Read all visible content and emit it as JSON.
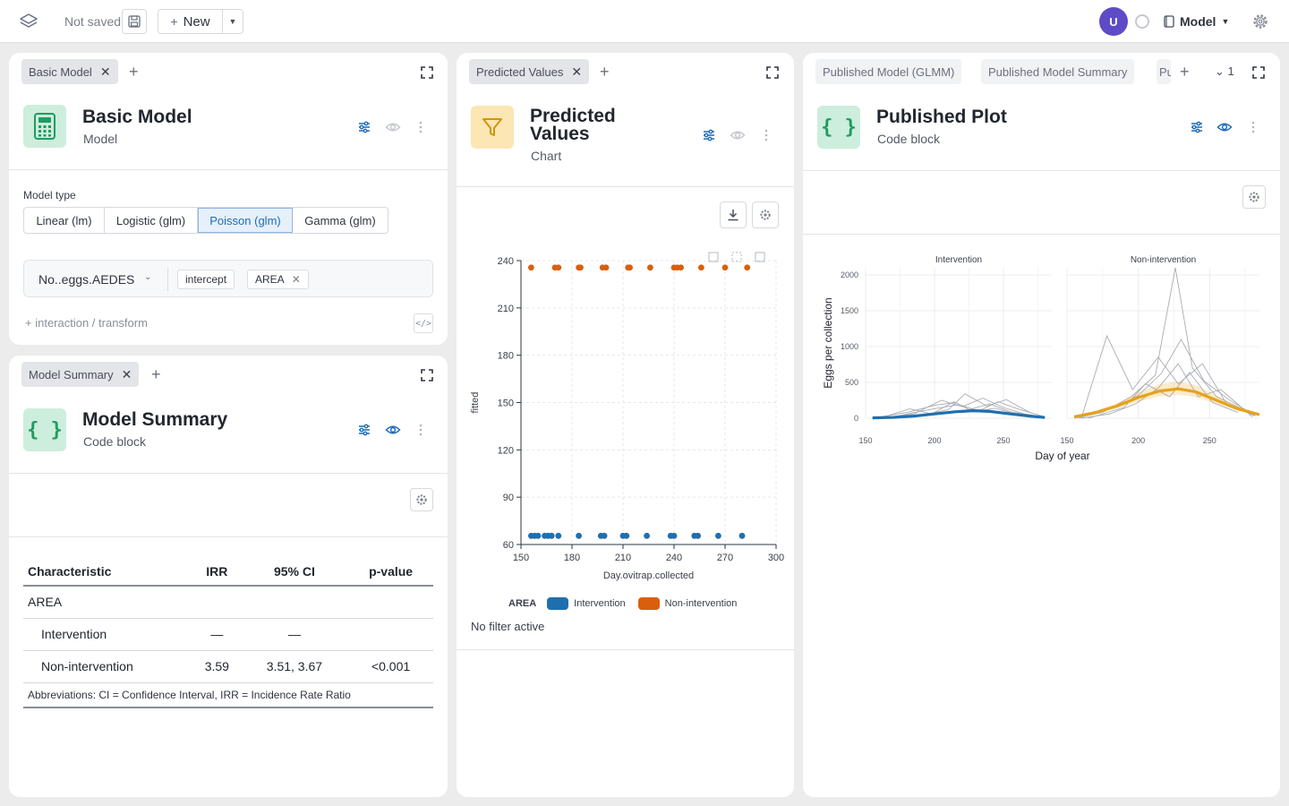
{
  "topbar": {
    "not_saved": "Not saved",
    "new_label": "New",
    "avatar_initial": "U",
    "model_label": "Model"
  },
  "panels": {
    "basic_model": {
      "tab_label": "Basic Model",
      "title": "Basic Model",
      "subtitle": "Model",
      "model_type_label": "Model type",
      "model_types": [
        "Linear (lm)",
        "Logistic (glm)",
        "Poisson (glm)",
        "Gamma (glm)"
      ],
      "selected_model_type": "Poisson (glm)",
      "response": "No..eggs.AEDES",
      "terms": [
        "intercept",
        "AREA"
      ],
      "interaction_label": "interaction / transform",
      "code_label": "</>"
    },
    "model_summary": {
      "tab_label": "Model Summary",
      "title": "Model Summary",
      "subtitle": "Code block",
      "table": {
        "headers": [
          "Characteristic",
          "IRR",
          "95% CI",
          "p-value"
        ],
        "rows": [
          [
            "AREA",
            "",
            "",
            ""
          ],
          [
            "Intervention",
            "—",
            "—",
            ""
          ],
          [
            "Non-intervention",
            "3.59",
            "3.51, 3.67",
            "<0.001"
          ]
        ],
        "footnote": "Abbreviations: CI = Confidence Interval, IRR = Incidence Rate Ratio"
      }
    },
    "predicted_values": {
      "tab_label": "Predicted Values",
      "title_line1": "Predicted",
      "title_line2": "Values",
      "subtitle": "Chart",
      "legend_title": "AREA",
      "legend_items": [
        "Intervention",
        "Non-intervention"
      ],
      "no_filter": "No filter active"
    },
    "published_plot": {
      "tabs": [
        "Published Model (GLMM)",
        "Published Model Summary",
        "Pu"
      ],
      "tab_count": "1",
      "title": "Published Plot",
      "subtitle": "Code block"
    }
  },
  "colors": {
    "intervention": "#1f6fb0",
    "non_intervention": "#d95f0e",
    "fit_intervention": "#1f6fb0",
    "fit_non_intervention": "#e6a21a",
    "accent": "#1e6bb8"
  },
  "chart_data": [
    {
      "type": "scatter",
      "xlabel": "Day.ovitrap.collected",
      "ylabel": "fitted",
      "xlim": [
        150,
        300
      ],
      "ylim": [
        60,
        240
      ],
      "x_ticks": [
        150,
        180,
        210,
        240,
        270,
        300
      ],
      "y_ticks": [
        60,
        90,
        120,
        150,
        180,
        210,
        240
      ],
      "grid": true,
      "legend_position": "bottom",
      "series": [
        {
          "name": "Intervention",
          "x": [
            156,
            158,
            160,
            164,
            166,
            168,
            172,
            184,
            197,
            199,
            210,
            212,
            224,
            238,
            240,
            252,
            254,
            266,
            280
          ],
          "y": [
            65.5,
            65.5,
            65.5,
            65.5,
            65.5,
            65.5,
            65.5,
            65.5,
            65.5,
            65.5,
            65.5,
            65.5,
            65.5,
            65.5,
            65.5,
            65.5,
            65.5,
            65.5,
            65.5
          ]
        },
        {
          "name": "Non-intervention",
          "x": [
            156,
            170,
            172,
            184,
            185,
            198,
            200,
            213,
            214,
            226,
            240,
            242,
            244,
            256,
            270,
            283
          ],
          "y": [
            235.6,
            235.6,
            235.6,
            235.6,
            235.6,
            235.6,
            235.6,
            235.6,
            235.6,
            235.6,
            235.6,
            235.6,
            235.6,
            235.6,
            235.6,
            235.6
          ]
        }
      ]
    },
    {
      "type": "line",
      "xlabel": "Day of year",
      "ylabel": "Eggs per collection",
      "facets": [
        "Intervention",
        "Non-intervention"
      ],
      "xlim": [
        150,
        285
      ],
      "ylim": [
        0,
        2100
      ],
      "x_ticks": [
        150,
        200,
        250
      ],
      "y_ticks": [
        0,
        500,
        1000,
        1500,
        2000
      ],
      "grid": true,
      "fits": [
        {
          "name": "Intervention",
          "x": [
            155,
            170,
            185,
            200,
            215,
            228,
            240,
            255,
            270,
            280
          ],
          "y": [
            5,
            12,
            30,
            60,
            90,
            105,
            95,
            60,
            28,
            10
          ]
        },
        {
          "name": "Non-intervention",
          "x": [
            155,
            170,
            185,
            200,
            215,
            228,
            240,
            255,
            270,
            285
          ],
          "y": [
            20,
            80,
            170,
            290,
            380,
            410,
            370,
            250,
            130,
            50
          ]
        }
      ]
    }
  ]
}
